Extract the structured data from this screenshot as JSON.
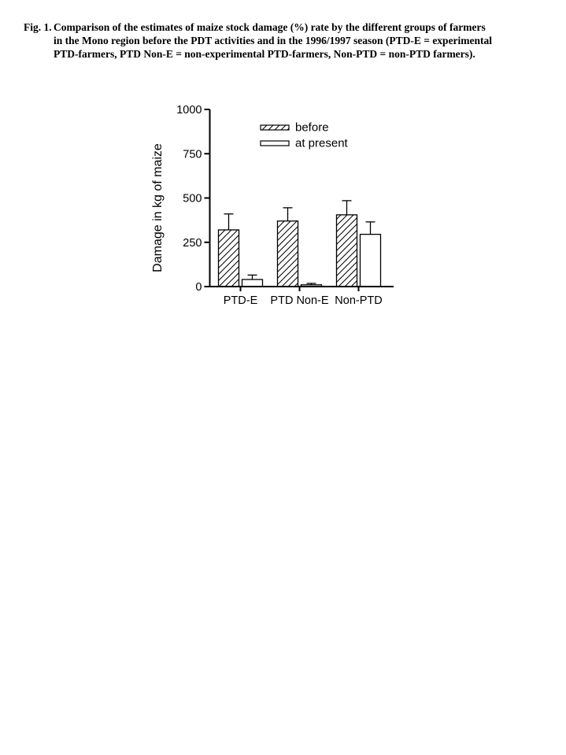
{
  "figure": {
    "label": "Fig. 1.",
    "caption_lines": [
      "Comparison of the estimates of maize stock damage (%) rate by the different groups of farmers",
      "in the Mono region before the PDT activities and in the 1996/1997 season (PTD-E = experimental",
      "PTD-farmers, PTD Non-E = non-experimental PTD-farmers, Non-PTD = non-PTD farmers)."
    ]
  },
  "chart_data": {
    "type": "bar",
    "title": "",
    "xlabel": "",
    "ylabel": "Damage in kg of maize",
    "ylim": [
      0,
      1000
    ],
    "yticks": [
      0,
      250,
      500,
      750,
      1000
    ],
    "categories": [
      "PTD-E",
      "PTD Non-E",
      "Non-PTD"
    ],
    "series": [
      {
        "name": "before",
        "fill": "hatched",
        "values": [
          320,
          370,
          405
        ],
        "upper_errors": [
          90,
          75,
          80
        ]
      },
      {
        "name": "at present",
        "fill": "open",
        "values": [
          40,
          10,
          295
        ],
        "upper_errors": [
          25,
          8,
          70
        ]
      }
    ],
    "legend": {
      "position": "top-inside",
      "entries": [
        "before",
        "at present"
      ]
    },
    "grid": false,
    "colors": {
      "foreground": "#000000",
      "background": "#ffffff"
    }
  }
}
